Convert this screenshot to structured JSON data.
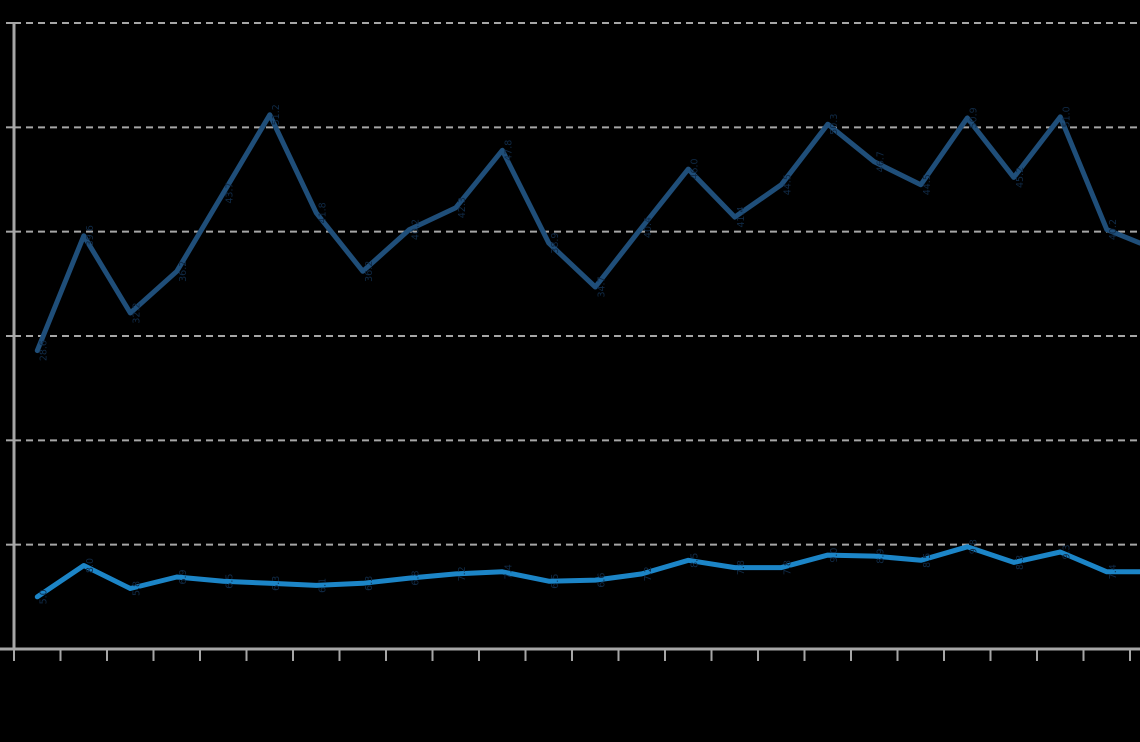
{
  "colors": {
    "background": "#000000",
    "axis": "#A6A6A6",
    "gridline": "#A6A6A6",
    "series1": "#1F4E79",
    "series2": "#1C85C7",
    "data_label": "#102A46"
  },
  "chart_data": {
    "type": "line",
    "title": "",
    "x": [
      1,
      2,
      3,
      4,
      5,
      6,
      7,
      8,
      9,
      10,
      11,
      12,
      13,
      14,
      15,
      16,
      17,
      18,
      19,
      20,
      21,
      22,
      23,
      24
    ],
    "x_axis": {
      "labels_visible": false,
      "tick_count": 25
    },
    "y_axis": {
      "labels_visible": false,
      "min": 0,
      "max": 60,
      "gridline_step": 10
    },
    "grid": {
      "horizontal": true,
      "vertical": false,
      "style": "dashed"
    },
    "legend": "none",
    "data_labels": {
      "present": true,
      "legible": false
    },
    "series": [
      {
        "name": "upper-dark-blue-line",
        "color": "#1F4E79",
        "values": [
          28.6,
          39.6,
          32.2,
          36.2,
          43.7,
          51.2,
          41.8,
          36.2,
          40.2,
          42.3,
          47.8,
          38.9,
          34.7,
          40.4,
          46.0,
          41.4,
          44.5,
          50.3,
          46.7,
          44.5,
          50.9,
          45.2,
          51.0,
          40.2
        ],
        "clipped_edge_value": 38.9
      },
      {
        "name": "lower-light-blue-line",
        "color": "#1C85C7",
        "values": [
          5.0,
          8.0,
          5.8,
          6.9,
          6.5,
          6.3,
          6.1,
          6.3,
          6.8,
          7.2,
          7.4,
          6.5,
          6.6,
          7.2,
          8.5,
          7.8,
          7.8,
          9.0,
          8.9,
          8.5,
          9.8,
          8.3,
          9.3,
          7.4
        ],
        "clipped_edge_value": 7.4
      }
    ]
  }
}
